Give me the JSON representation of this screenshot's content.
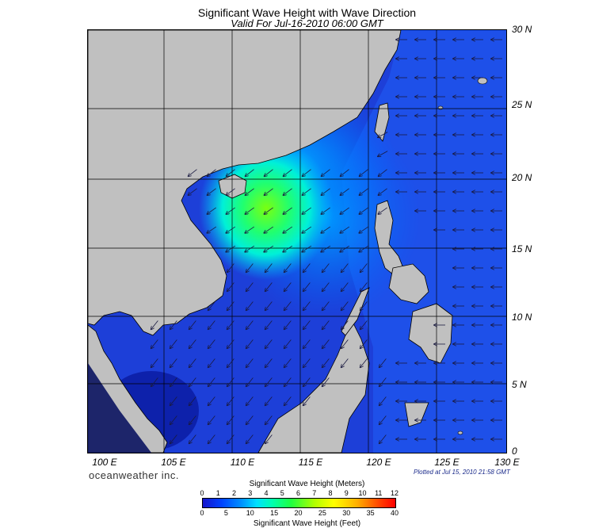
{
  "title": "Significant Wave Height with Wave Direction",
  "subtitle": "Valid For Jul-16-2010 06:00 GMT",
  "lat_labels": [
    "30 N",
    "25 N",
    "20 N",
    "15 N",
    "10 N",
    "5 N",
    "0"
  ],
  "lon_labels": [
    "100 E",
    "105 E",
    "110 E",
    "115 E",
    "120 E",
    "125 E",
    "130 E"
  ],
  "brand": "oceanweather inc.",
  "plotted": "Plotted at Jul 15, 2010 21:58 GMT",
  "colorbar": {
    "title_top": "Significant Wave Height (Meters)",
    "title_bottom": "Significant Wave Height (Feet)",
    "meters_ticks": [
      "0",
      "1",
      "2",
      "3",
      "4",
      "5",
      "6",
      "7",
      "8",
      "9",
      "10",
      "11",
      "12"
    ],
    "feet_ticks": [
      "0",
      "5",
      "10",
      "15",
      "20",
      "25",
      "30",
      "35",
      "40"
    ]
  },
  "colors": {
    "land": "#c0c0c0",
    "ocean_low": "#1a3ad8",
    "ocean_mid": "#0090ff",
    "ocean_high": "#00ffb0",
    "peak": "#60ff20"
  }
}
